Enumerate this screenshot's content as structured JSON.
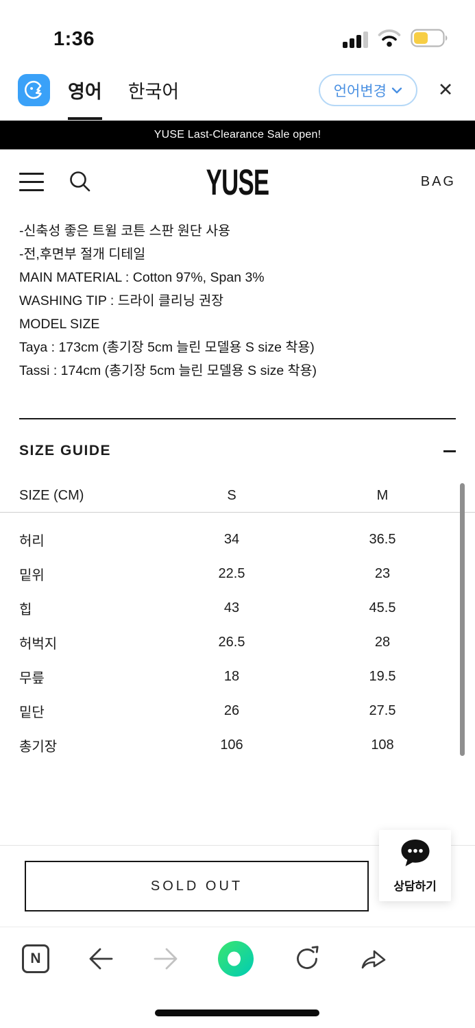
{
  "status_bar": {
    "time": "1:36"
  },
  "translate_bar": {
    "tab_english": "영어",
    "tab_korean": "한국어",
    "change_language": "언어변경",
    "close": "✕"
  },
  "promo_banner": {
    "text": "YUSE Last-Clearance Sale open!"
  },
  "site_header": {
    "logo": "YUSE",
    "bag": "BAG"
  },
  "product": {
    "bullets": [
      "-신축성 좋은 트윌 코튼 스판 원단 사용",
      "-전,후면부 절개 디테일"
    ],
    "main_material": "MAIN MATERIAL : Cotton 97%, Span 3%",
    "washing_tip": "WASHING TIP : 드라이 클리닝 권장",
    "model_size_title": "MODEL SIZE",
    "model_sizes": [
      "Taya : 173cm (총기장 5cm 늘린 모델용 S size 착용)",
      "Tassi : 174cm (총기장 5cm 늘린 모델용 S size 착용)"
    ]
  },
  "size_guide": {
    "title": "SIZE GUIDE",
    "headers": [
      "SIZE (CM)",
      "S",
      "M"
    ],
    "rows": [
      {
        "label": "허리",
        "s": "34",
        "m": "36.5"
      },
      {
        "label": "밑위",
        "s": "22.5",
        "m": "23"
      },
      {
        "label": "힙",
        "s": "43",
        "m": "45.5"
      },
      {
        "label": "허벅지",
        "s": "26.5",
        "m": "28"
      },
      {
        "label": "무릎",
        "s": "18",
        "m": "19.5"
      },
      {
        "label": "밑단",
        "s": "26",
        "m": "27.5"
      },
      {
        "label": "총기장",
        "s": "106",
        "m": "108"
      }
    ]
  },
  "purchase": {
    "sold_out": "SOLD OUT"
  },
  "chat": {
    "label": "상담하기"
  },
  "colors": {
    "papago_blue": "#3aa1f8",
    "link_blue": "#4a90e2",
    "naver_green_start": "#3be56f",
    "naver_green_end": "#00ccb4",
    "battery_yellow": "#f7ce45",
    "banner_bg": "#000000"
  }
}
